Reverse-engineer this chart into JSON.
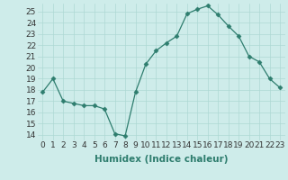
{
  "x": [
    0,
    1,
    2,
    3,
    4,
    5,
    6,
    7,
    8,
    9,
    10,
    11,
    12,
    13,
    14,
    15,
    16,
    17,
    18,
    19,
    20,
    21,
    22,
    23
  ],
  "y": [
    17.8,
    19.0,
    17.0,
    16.8,
    16.6,
    16.6,
    16.3,
    14.1,
    13.9,
    17.8,
    20.3,
    21.5,
    22.2,
    22.8,
    24.8,
    25.2,
    25.5,
    24.7,
    23.7,
    22.8,
    21.0,
    20.5,
    19.0,
    18.2
  ],
  "line_color": "#2e7d6e",
  "marker": "D",
  "marker_size": 2.5,
  "bg_color": "#ceecea",
  "grid_color": "#aed8d4",
  "xlabel": "Humidex (Indice chaleur)",
  "xlim": [
    -0.5,
    23.5
  ],
  "ylim": [
    13.5,
    25.7
  ],
  "yticks": [
    14,
    15,
    16,
    17,
    18,
    19,
    20,
    21,
    22,
    23,
    24,
    25
  ],
  "xticks": [
    0,
    1,
    2,
    3,
    4,
    5,
    6,
    7,
    8,
    9,
    10,
    11,
    12,
    13,
    14,
    15,
    16,
    17,
    18,
    19,
    20,
    21,
    22,
    23
  ],
  "tick_label_fontsize": 6.5,
  "xlabel_fontsize": 7.5
}
